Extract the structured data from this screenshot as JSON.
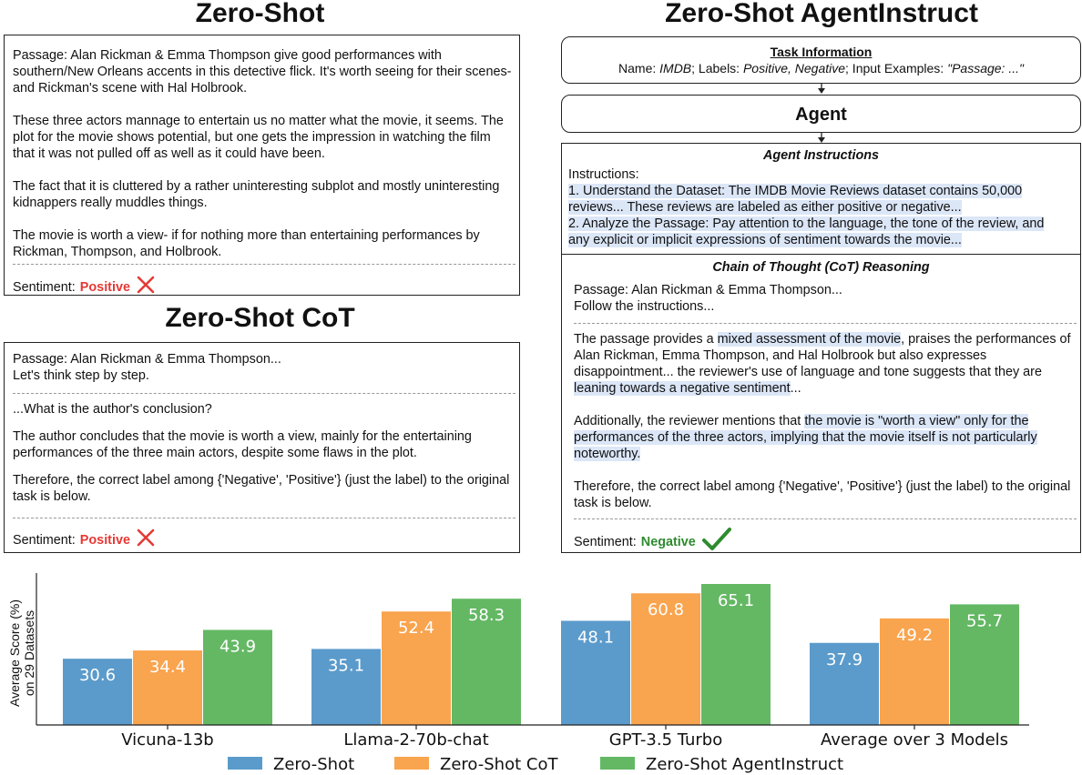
{
  "zero_shot": {
    "title": "Zero-Shot",
    "paragraphs": [
      "Passage: Alan Rickman & Emma Thompson give good performances with southern/New Orleans accents in this detective flick. It's worth seeing for their scenes- and Rickman's scene with Hal Holbrook.",
      "These three actors mannage to entertain us no matter what the movie, it seems. The plot for the movie shows potential, but one gets the impression in watching the film that it was not pulled off as well as it could have been.",
      "The fact that it is cluttered by a rather uninteresting subplot and mostly uninteresting kidnappers really muddles things.",
      "The movie is worth a view- if for nothing more than entertaining performances by Rickman, Thompson, and Holbrook."
    ],
    "sentiment_label": "Sentiment:",
    "sentiment_value": "Positive"
  },
  "zero_shot_cot": {
    "title": "Zero-Shot CoT",
    "prompt_line1": "Passage: Alan Rickman & Emma Thompson...",
    "prompt_line2": "Let's think step by step.",
    "question": "...What is the author's conclusion?",
    "answer": "The author concludes that the movie is worth a view, mainly for the entertaining performances of the three main actors, despite some flaws in the plot.",
    "final": "Therefore, the correct label among {'Negative', 'Positive'} (just the label) to the original task is below.",
    "sentiment_label": "Sentiment:",
    "sentiment_value": "Positive"
  },
  "agentinstruct": {
    "title": "Zero-Shot AgentInstruct",
    "task_info": {
      "heading": "Task Information",
      "name_label": "Name: ",
      "name_value": "IMDB",
      "labels_label": "; Labels: ",
      "labels_value": "Positive, Negative",
      "examples_label": "; Input Examples: ",
      "examples_value": "\"Passage: ...\""
    },
    "agent_label": "Agent",
    "instructions": {
      "heading": "Agent Instructions",
      "line1": "Instructions:",
      "line2": "1. Understand the Dataset: The IMDB Movie Reviews dataset contains 50,000",
      "line3": "reviews... These reviews are labeled as either positive or negative...",
      "line4": "2. Analyze the Passage: Pay attention to the language, the tone of the review, and",
      "line5": "any explicit or implicit expressions of sentiment towards the movie..."
    },
    "cot": {
      "heading": "Chain of Thought (CoT) Reasoning",
      "prompt_line1": "Passage: Alan Rickman & Emma Thompson...",
      "prompt_line2": "Follow the instructions...",
      "p1_a": "The passage provides a ",
      "p1_hl1": "mixed assessment of the movie",
      "p1_b": ", praises the performances of Alan Rickman, Emma Thompson, and Hal Holbrook but also expresses disappointment... the reviewer's use of language and tone suggests that they are ",
      "p1_hl2": "leaning towards a negative sentiment",
      "p1_c": "...",
      "p2_a": "Additionally, the reviewer mentions that ",
      "p2_hl": "the movie is \"worth a view\" only for the performances of the three actors, implying that the movie itself is not particularly noteworthy.",
      "final": "Therefore, the correct label among {'Negative', 'Positive'} (just the label) to the original task is below.",
      "sentiment_label": "Sentiment:",
      "sentiment_value": "Negative"
    }
  },
  "colors": {
    "zero_shot": "#5b9bcb",
    "zero_shot_cot": "#f9a44e",
    "agentinstruct": "#64b864",
    "wrong": "#e53935",
    "right": "#2e8b2e"
  },
  "icons": {
    "wrong": "cross-icon",
    "right": "checkmark-icon"
  },
  "chart_data": {
    "type": "bar",
    "categories": [
      "Vicuna-13b",
      "Llama-2-70b-chat",
      "GPT-3.5 Turbo",
      "Average over 3 Models"
    ],
    "series": [
      {
        "name": "Zero-Shot",
        "values": [
          30.6,
          35.1,
          48.1,
          37.9
        ]
      },
      {
        "name": "Zero-Shot CoT",
        "values": [
          34.4,
          52.4,
          60.8,
          49.2
        ]
      },
      {
        "name": "Zero-Shot AgentInstruct",
        "values": [
          43.9,
          58.3,
          65.1,
          55.7
        ]
      }
    ],
    "ylabel_line1": "Average Score (%)",
    "ylabel_line2": "on 29 Datasets",
    "ylim": [
      0,
      70
    ],
    "grid": false,
    "legend_position": "bottom"
  }
}
